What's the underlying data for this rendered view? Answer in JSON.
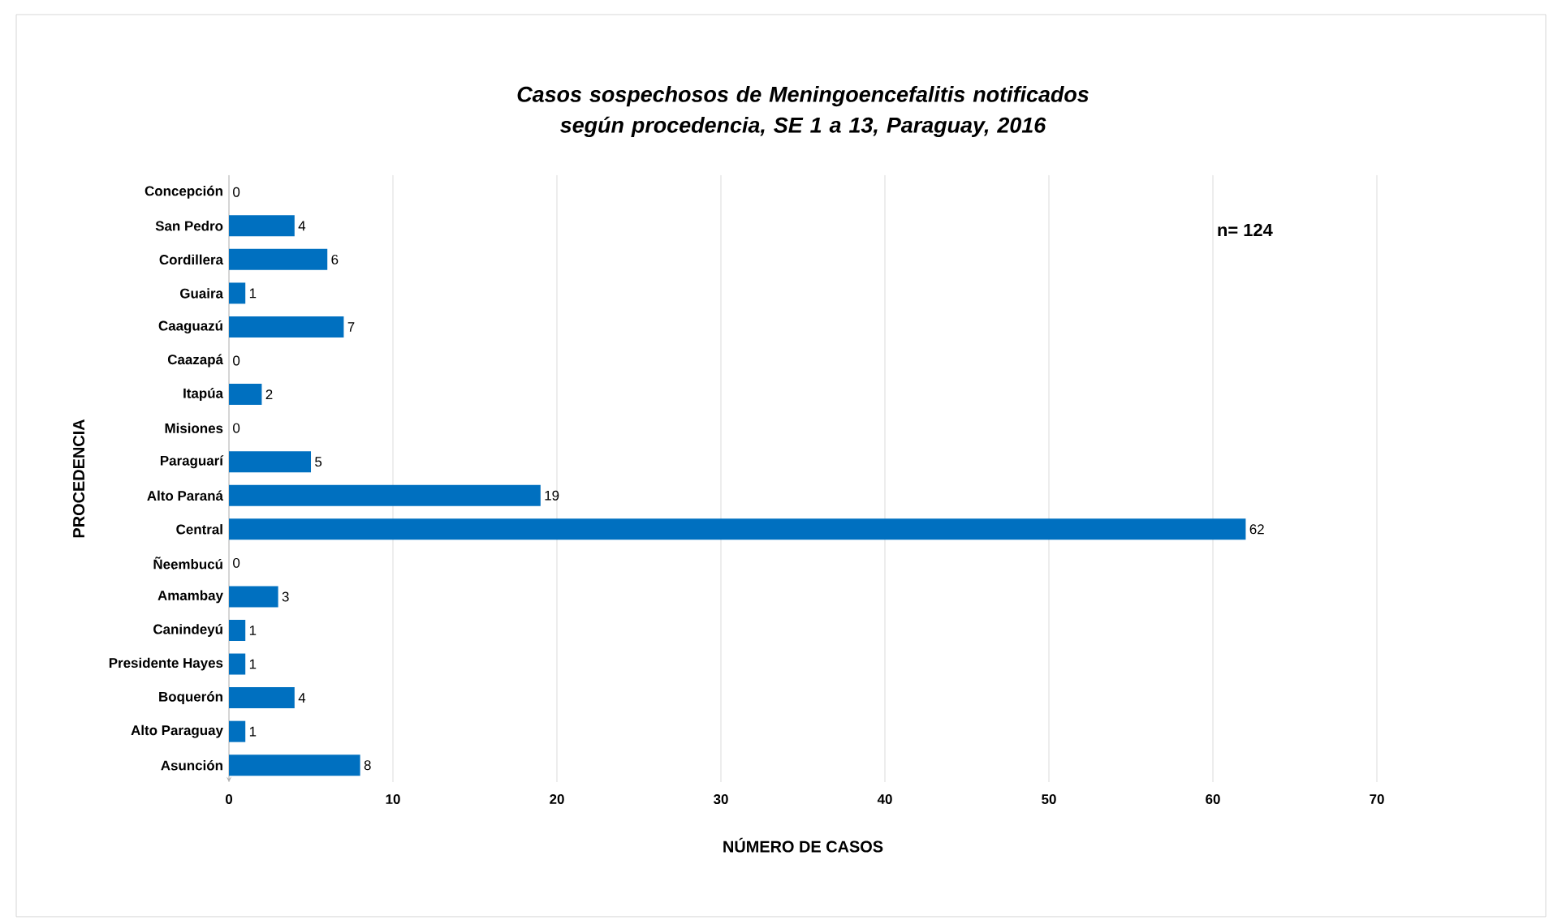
{
  "chart_data": {
    "type": "bar",
    "orientation": "horizontal",
    "title": "Casos sospechosos de Meningoencefalitis notificados según procedencia, SE 1 a 13, Paraguay, 2016",
    "xlabel": "NÚMERO DE CASOS",
    "ylabel": "PROCEDENCIA",
    "categories": [
      "Concepción",
      "San Pedro",
      "Cordillera",
      "Guaira",
      "Caaguazú",
      "Caazapá",
      "Itapúa",
      "Misiones",
      "Paraguarí",
      "Alto Paraná",
      "Central",
      "Ñeembucú",
      "Amambay",
      "Canindeyú",
      "Presidente Hayes",
      "Boquerón",
      "Alto Paraguay",
      "Asunción"
    ],
    "values": [
      0,
      4,
      6,
      1,
      7,
      0,
      2,
      0,
      5,
      19,
      62,
      0,
      3,
      1,
      1,
      4,
      1,
      8
    ],
    "color": "#0070c0",
    "xlim": [
      0,
      70
    ],
    "xticks": [
      0,
      10,
      20,
      30,
      40,
      50,
      60,
      70
    ],
    "grid": "x",
    "data_labels": true,
    "annotations": [
      "n= 124"
    ]
  }
}
